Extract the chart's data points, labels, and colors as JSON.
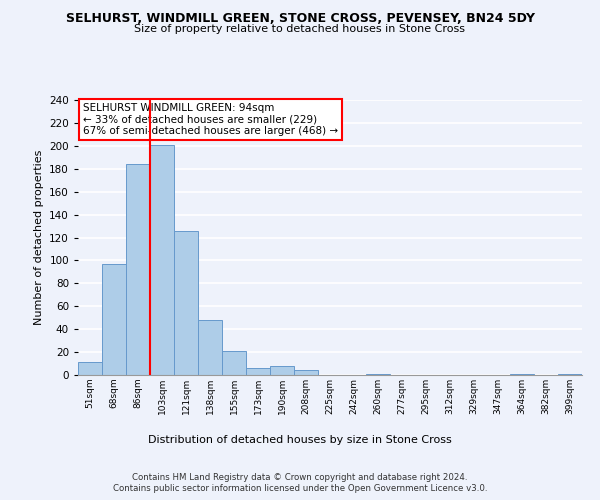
{
  "title": "SELHURST, WINDMILL GREEN, STONE CROSS, PEVENSEY, BN24 5DY",
  "subtitle": "Size of property relative to detached houses in Stone Cross",
  "xlabel": "Distribution of detached houses by size in Stone Cross",
  "ylabel": "Number of detached properties",
  "bar_labels": [
    "51sqm",
    "68sqm",
    "86sqm",
    "103sqm",
    "121sqm",
    "138sqm",
    "155sqm",
    "173sqm",
    "190sqm",
    "208sqm",
    "225sqm",
    "242sqm",
    "260sqm",
    "277sqm",
    "295sqm",
    "312sqm",
    "329sqm",
    "347sqm",
    "364sqm",
    "382sqm",
    "399sqm"
  ],
  "bar_values": [
    11,
    97,
    184,
    201,
    126,
    48,
    21,
    6,
    8,
    4,
    0,
    0,
    1,
    0,
    0,
    0,
    0,
    0,
    1,
    0,
    1
  ],
  "bar_color": "#aecde8",
  "bar_edge_color": "#6699cc",
  "redline_index": 2,
  "ylim": [
    0,
    240
  ],
  "yticks": [
    0,
    20,
    40,
    60,
    80,
    100,
    120,
    140,
    160,
    180,
    200,
    220,
    240
  ],
  "annotation_title": "SELHURST WINDMILL GREEN: 94sqm",
  "annotation_line1": "← 33% of detached houses are smaller (229)",
  "annotation_line2": "67% of semi-detached houses are larger (468) →",
  "footer1": "Contains HM Land Registry data © Crown copyright and database right 2024.",
  "footer2": "Contains public sector information licensed under the Open Government Licence v3.0.",
  "bg_color": "#eef2fb",
  "plot_bg_color": "#eef2fb"
}
